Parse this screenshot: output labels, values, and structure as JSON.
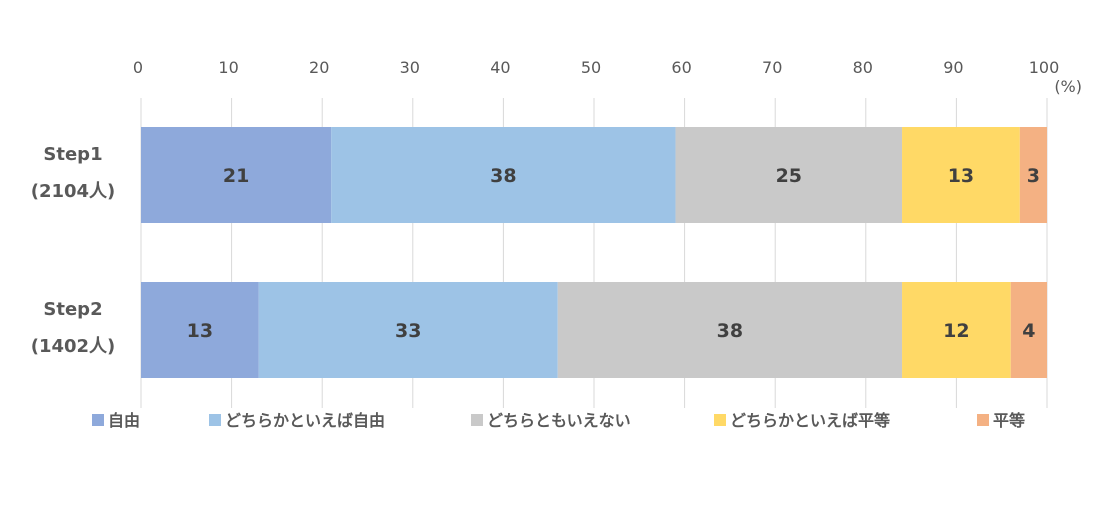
{
  "chart_data": {
    "type": "bar",
    "orientation": "horizontal",
    "stacked": true,
    "unit_label": "(%)",
    "xlim": [
      0,
      100
    ],
    "x_ticks": [
      "0",
      "10",
      "20",
      "30",
      "40",
      "50",
      "60",
      "70",
      "80",
      "90",
      "100"
    ],
    "grid": true,
    "legend_position": "bottom",
    "categories": [
      {
        "line1": "Step1",
        "line2": "(2104人)"
      },
      {
        "line1": "Step2",
        "line2": "(1402人)"
      }
    ],
    "series": [
      {
        "name": "自由",
        "color": "#8EA9DB",
        "values": [
          21,
          13
        ]
      },
      {
        "name": "どちらかといえば自由",
        "color": "#9DC3E6",
        "values": [
          38,
          33
        ]
      },
      {
        "name": "どちらともいえない",
        "color": "#C9C9C9",
        "values": [
          25,
          38
        ]
      },
      {
        "name": "どちらかといえば平等",
        "color": "#FFD966",
        "values": [
          13,
          12
        ]
      },
      {
        "name": "平等",
        "color": "#F4B183",
        "values": [
          3,
          4
        ]
      }
    ]
  }
}
